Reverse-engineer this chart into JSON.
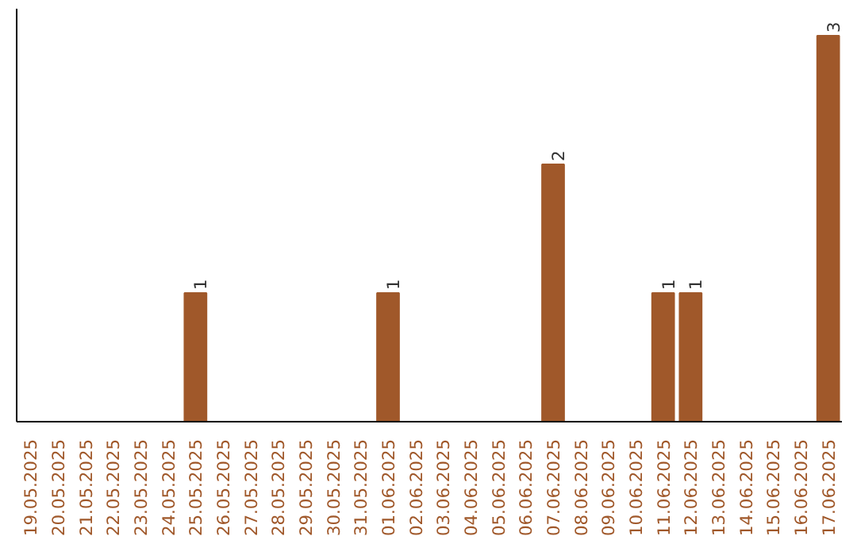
{
  "chart_data": {
    "type": "bar",
    "categories": [
      "19.05.2025",
      "20.05.2025",
      "21.05.2025",
      "22.05.2025",
      "23.05.2025",
      "24.05.2025",
      "25.05.2025",
      "26.05.2025",
      "27.05.2025",
      "28.05.2025",
      "29.05.2025",
      "30.05.2025",
      "31.05.2025",
      "01.06.2025",
      "02.06.2025",
      "03.06.2025",
      "04.06.2025",
      "05.06.2025",
      "06.06.2025",
      "07.06.2025",
      "08.06.2025",
      "09.06.2025",
      "10.06.2025",
      "11.06.2025",
      "12.06.2025",
      "13.06.2025",
      "14.06.2025",
      "15.06.2025",
      "16.06.2025",
      "17.06.2025"
    ],
    "values": [
      0,
      0,
      0,
      0,
      0,
      0,
      1,
      0,
      0,
      0,
      0,
      0,
      0,
      1,
      0,
      0,
      0,
      0,
      0,
      2,
      0,
      0,
      0,
      1,
      1,
      0,
      0,
      0,
      0,
      3
    ],
    "value_labels": [
      null,
      null,
      null,
      null,
      null,
      null,
      "1",
      null,
      null,
      null,
      null,
      null,
      null,
      "1",
      null,
      null,
      null,
      null,
      null,
      "2",
      null,
      null,
      null,
      "1",
      "1",
      null,
      null,
      null,
      null,
      "3"
    ],
    "color": "#a0582a",
    "grid": false,
    "tick_labels": "x"
  }
}
